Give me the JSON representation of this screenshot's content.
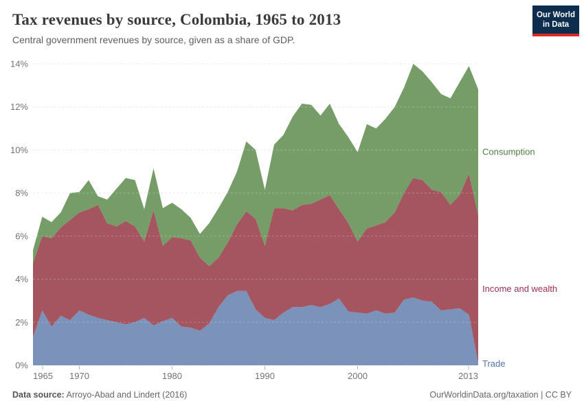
{
  "header": {
    "title": "Tax revenues by source, Colombia, 1965 to 2013",
    "subtitle": "Central government revenues by source, given as a share of GDP.",
    "logo": {
      "line1": "Our World",
      "line2": "in Data",
      "bg_color": "#0d2d4f",
      "accent_color": "#dc2a1e"
    }
  },
  "footer": {
    "source_label": "Data source:",
    "source_value": " Arroyo-Abad and Lindert (2016)",
    "credit": "OurWorldinData.org/taxation | CC BY"
  },
  "axis_style": {
    "tick_label_color": "#737373",
    "gridline_color": "#e3e3e3",
    "tick_mark_color": "#b8b8b8"
  },
  "chart_data": {
    "type": "area",
    "stacked": true,
    "title": "Tax revenues by source, Colombia, 1965 to 2013",
    "xlabel": "",
    "ylabel": "",
    "x": [
      1965,
      1966,
      1967,
      1968,
      1969,
      1970,
      1971,
      1972,
      1973,
      1974,
      1975,
      1976,
      1977,
      1978,
      1979,
      1980,
      1981,
      1982,
      1983,
      1984,
      1985,
      1986,
      1987,
      1988,
      1989,
      1990,
      1991,
      1992,
      1993,
      1994,
      1995,
      1996,
      1997,
      1998,
      1999,
      2000,
      2001,
      2002,
      2003,
      2004,
      2005,
      2006,
      2007,
      2008,
      2009,
      2010,
      2011,
      2012,
      2013
    ],
    "series": [
      {
        "name": "Trade",
        "color": "#7b92ba",
        "label_color": "#4f74ab",
        "values": [
          1.3,
          2.55,
          1.8,
          2.3,
          2.1,
          2.55,
          2.35,
          2.2,
          2.1,
          2.0,
          1.9,
          2.0,
          2.2,
          1.85,
          2.05,
          2.2,
          1.8,
          1.75,
          1.6,
          1.95,
          2.7,
          3.25,
          3.45,
          3.45,
          2.6,
          2.2,
          2.1,
          2.45,
          2.7,
          2.7,
          2.8,
          2.7,
          2.85,
          3.1,
          2.5,
          2.45,
          2.4,
          2.55,
          2.4,
          2.45,
          3.05,
          3.15,
          3.0,
          2.95,
          2.55,
          2.6,
          2.65,
          2.35,
          0.12
        ]
      },
      {
        "name": "Income and wealth",
        "color": "#a45560",
        "label_color": "#9d2e50",
        "values": [
          3.45,
          3.45,
          4.1,
          4.1,
          4.65,
          4.55,
          4.9,
          5.25,
          4.5,
          4.45,
          4.8,
          4.45,
          3.55,
          5.35,
          3.5,
          3.75,
          4.1,
          4.05,
          3.4,
          2.65,
          2.3,
          2.45,
          3.1,
          3.7,
          4.2,
          3.35,
          5.2,
          4.85,
          4.5,
          4.75,
          4.7,
          5.0,
          5.05,
          4.15,
          4.1,
          3.3,
          3.95,
          3.95,
          4.25,
          4.65,
          4.95,
          5.55,
          5.6,
          5.2,
          5.5,
          4.85,
          5.25,
          6.55,
          6.85
        ]
      },
      {
        "name": "Consumption",
        "color": "#769c68",
        "label_color": "#4d7e3e",
        "values": [
          0.6,
          0.9,
          0.75,
          0.7,
          1.25,
          0.95,
          1.35,
          0.4,
          1.1,
          1.75,
          2.0,
          2.15,
          1.5,
          1.95,
          1.75,
          1.6,
          1.35,
          1.05,
          1.1,
          2.0,
          2.3,
          2.35,
          2.45,
          3.25,
          3.2,
          2.6,
          2.95,
          3.4,
          4.35,
          4.7,
          4.6,
          3.9,
          4.25,
          3.95,
          4.0,
          4.15,
          4.85,
          4.5,
          4.8,
          4.9,
          4.9,
          5.3,
          5.05,
          5.0,
          4.55,
          4.95,
          5.25,
          5.0,
          5.85
        ]
      }
    ],
    "ylim": [
      0,
      14
    ],
    "yticks": [
      0,
      2,
      4,
      6,
      8,
      10,
      12,
      14
    ],
    "ytick_labels": [
      "0%",
      "2%",
      "4%",
      "6%",
      "8%",
      "10%",
      "12%",
      "14%"
    ],
    "xticks": [
      1965,
      1970,
      1980,
      1990,
      2000,
      2013
    ],
    "xtick_labels": [
      "1965",
      "1970",
      "1980",
      "1990",
      "2000",
      "2013"
    ],
    "grid": true,
    "legend_position": "right-edge-labels"
  }
}
